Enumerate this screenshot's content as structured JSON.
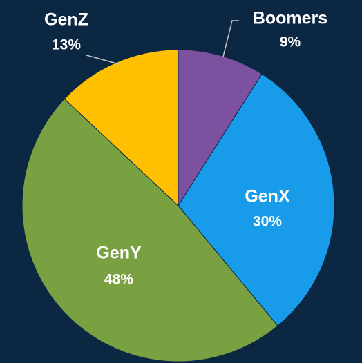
{
  "chart_data": {
    "type": "pie",
    "categories": [
      "Boomers",
      "GenX",
      "GenY",
      "GenZ"
    ],
    "values": [
      9,
      30,
      48,
      13
    ],
    "value_labels": [
      "9%",
      "30%",
      "48%",
      "13%"
    ],
    "colors": [
      "#7b51a0",
      "#189be8",
      "#79a141",
      "#fec000"
    ]
  }
}
